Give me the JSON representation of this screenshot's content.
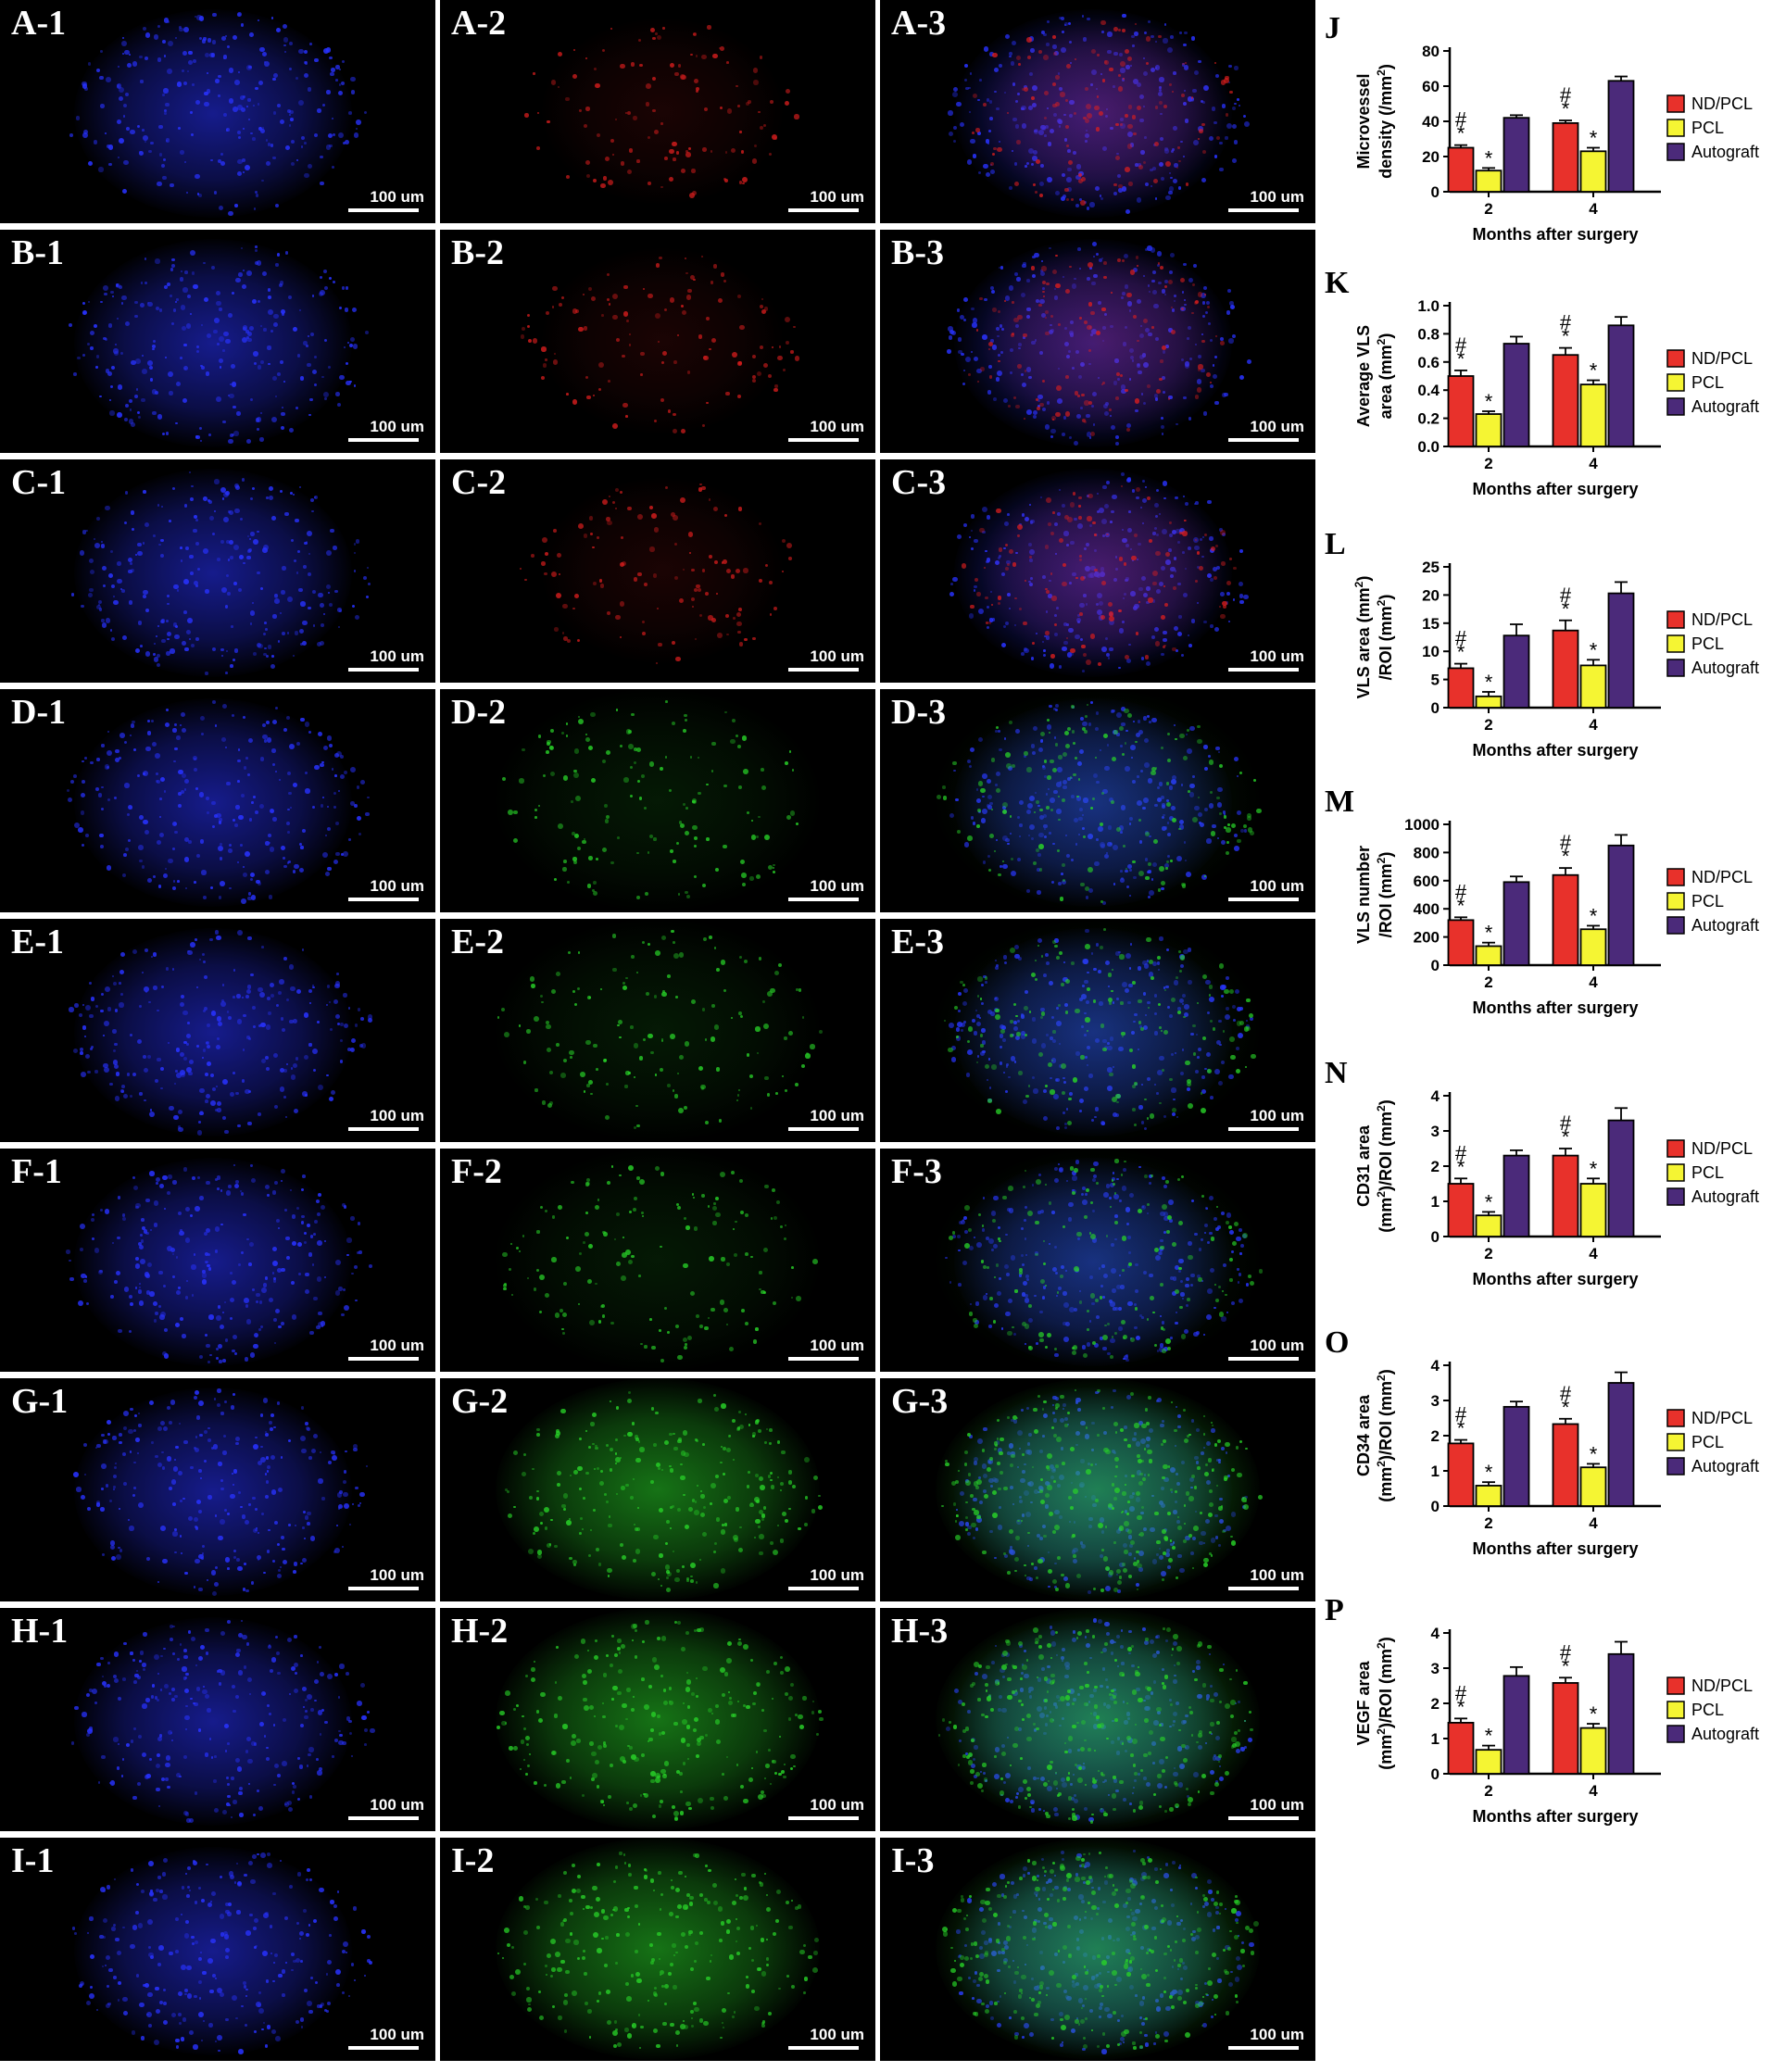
{
  "micrographs": {
    "scale_bar": "100 um",
    "rows": [
      {
        "row": "A",
        "stains": [
          "blue",
          "red",
          "merge-red"
        ],
        "labels": [
          "A-1",
          "A-2",
          "A-3"
        ]
      },
      {
        "row": "B",
        "stains": [
          "blue",
          "red",
          "merge-red"
        ],
        "labels": [
          "B-1",
          "B-2",
          "B-3"
        ]
      },
      {
        "row": "C",
        "stains": [
          "blue",
          "red",
          "merge-red"
        ],
        "labels": [
          "C-1",
          "C-2",
          "C-3"
        ]
      },
      {
        "row": "D",
        "stains": [
          "blue",
          "green",
          "merge-green"
        ],
        "labels": [
          "D-1",
          "D-2",
          "D-3"
        ]
      },
      {
        "row": "E",
        "stains": [
          "blue",
          "green",
          "merge-green"
        ],
        "labels": [
          "E-1",
          "E-2",
          "E-3"
        ]
      },
      {
        "row": "F",
        "stains": [
          "blue",
          "green",
          "merge-green"
        ],
        "labels": [
          "F-1",
          "F-2",
          "F-3"
        ]
      },
      {
        "row": "G",
        "stains": [
          "blue",
          "green-bright",
          "merge-green-bright"
        ],
        "labels": [
          "G-1",
          "G-2",
          "G-3"
        ]
      },
      {
        "row": "H",
        "stains": [
          "blue",
          "green-bright",
          "merge-green-bright"
        ],
        "labels": [
          "H-1",
          "H-2",
          "H-3"
        ]
      },
      {
        "row": "I",
        "stains": [
          "blue",
          "green-bright",
          "merge-green-bright"
        ],
        "labels": [
          "I-1",
          "I-2",
          "I-3"
        ]
      }
    ]
  },
  "colors": {
    "ND/PCL": "#e8312b",
    "PCL": "#f5f533",
    "Autograft": "#4b2a7a",
    "dapi": "#1a1aff",
    "red_stain": "#d01818",
    "green_stain": "#22c822"
  },
  "chart_data": [
    {
      "panel": "J",
      "type": "bar",
      "ylabel_lines": [
        "Microvessel",
        "density (/mm²)"
      ],
      "yticks": [
        0,
        20,
        40,
        60,
        80
      ],
      "ylim": [
        0,
        80
      ],
      "categories": [
        "2",
        "4"
      ],
      "xlabel": "Months after surgery",
      "series": [
        {
          "name": "ND/PCL",
          "values": [
            25,
            39
          ],
          "errors": [
            1.5,
            1.5
          ],
          "marks": [
            "#*",
            "#*"
          ]
        },
        {
          "name": "PCL",
          "values": [
            12,
            23
          ],
          "errors": [
            1.5,
            2
          ],
          "marks": [
            "*",
            "*"
          ]
        },
        {
          "name": "Autograft",
          "values": [
            42,
            63
          ],
          "errors": [
            1.5,
            2.5
          ],
          "marks": [
            "",
            ""
          ]
        }
      ]
    },
    {
      "panel": "K",
      "type": "bar",
      "ylabel_lines": [
        "Average VLS",
        "area (mm²)"
      ],
      "yticks": [
        0.0,
        0.2,
        0.4,
        0.6,
        0.8,
        1.0
      ],
      "ylim": [
        0,
        1.0
      ],
      "categories": [
        "2",
        "4"
      ],
      "xlabel": "Months after surgery",
      "series": [
        {
          "name": "ND/PCL",
          "values": [
            0.5,
            0.65
          ],
          "errors": [
            0.04,
            0.05
          ],
          "marks": [
            "#*",
            "#*"
          ]
        },
        {
          "name": "PCL",
          "values": [
            0.23,
            0.44
          ],
          "errors": [
            0.02,
            0.03
          ],
          "marks": [
            "*",
            "*"
          ]
        },
        {
          "name": "Autograft",
          "values": [
            0.73,
            0.86
          ],
          "errors": [
            0.05,
            0.06
          ],
          "marks": [
            "",
            ""
          ]
        }
      ]
    },
    {
      "panel": "L",
      "type": "bar",
      "ylabel_lines": [
        "VLS area (mm²)",
        "/ROI (mm²)"
      ],
      "yticks": [
        0,
        5,
        10,
        15,
        20,
        25
      ],
      "ylim": [
        0,
        25
      ],
      "categories": [
        "2",
        "4"
      ],
      "xlabel": "Months after surgery",
      "series": [
        {
          "name": "ND/PCL",
          "values": [
            7,
            13.7
          ],
          "errors": [
            0.8,
            1.8
          ],
          "marks": [
            "#*",
            "#*"
          ]
        },
        {
          "name": "PCL",
          "values": [
            2,
            7.5
          ],
          "errors": [
            0.8,
            1.0
          ],
          "marks": [
            "*",
            "*"
          ]
        },
        {
          "name": "Autograft",
          "values": [
            12.8,
            20.3
          ],
          "errors": [
            2,
            2
          ],
          "marks": [
            "",
            ""
          ]
        }
      ]
    },
    {
      "panel": "M",
      "type": "bar",
      "ylabel_lines": [
        "VLS number",
        "/ROI (mm²)"
      ],
      "yticks": [
        0,
        200,
        400,
        600,
        800,
        1000
      ],
      "ylim": [
        0,
        1000
      ],
      "categories": [
        "2",
        "4"
      ],
      "xlabel": "Months after surgery",
      "series": [
        {
          "name": "ND/PCL",
          "values": [
            320,
            640
          ],
          "errors": [
            20,
            50
          ],
          "marks": [
            "#*",
            "#*"
          ]
        },
        {
          "name": "PCL",
          "values": [
            135,
            255
          ],
          "errors": [
            25,
            25
          ],
          "marks": [
            "*",
            "*"
          ]
        },
        {
          "name": "Autograft",
          "values": [
            590,
            850
          ],
          "errors": [
            40,
            75
          ],
          "marks": [
            "",
            ""
          ]
        }
      ]
    },
    {
      "panel": "N",
      "type": "bar",
      "ylabel_lines": [
        "CD31 area",
        "(mm²)/ROI (mm²)"
      ],
      "yticks": [
        0,
        1,
        2,
        3,
        4
      ],
      "ylim": [
        0,
        4
      ],
      "categories": [
        "2",
        "4"
      ],
      "xlabel": "Months after surgery",
      "series": [
        {
          "name": "ND/PCL",
          "values": [
            1.5,
            2.3
          ],
          "errors": [
            0.15,
            0.2
          ],
          "marks": [
            "#*",
            "#*"
          ]
        },
        {
          "name": "PCL",
          "values": [
            0.6,
            1.5
          ],
          "errors": [
            0.1,
            0.15
          ],
          "marks": [
            "*",
            "*"
          ]
        },
        {
          "name": "Autograft",
          "values": [
            2.3,
            3.3
          ],
          "errors": [
            0.15,
            0.35
          ],
          "marks": [
            "",
            ""
          ]
        }
      ]
    },
    {
      "panel": "O",
      "type": "bar",
      "ylabel_lines": [
        "CD34 area",
        "(mm²)/ROI (mm²)"
      ],
      "yticks": [
        0,
        1,
        2,
        3,
        4
      ],
      "ylim": [
        0,
        4
      ],
      "categories": [
        "2",
        "4"
      ],
      "xlabel": "Months after surgery",
      "series": [
        {
          "name": "ND/PCL",
          "values": [
            1.78,
            2.33
          ],
          "errors": [
            0.1,
            0.15
          ],
          "marks": [
            "#*",
            "#*"
          ]
        },
        {
          "name": "PCL",
          "values": [
            0.58,
            1.1
          ],
          "errors": [
            0.1,
            0.1
          ],
          "marks": [
            "*",
            "*"
          ]
        },
        {
          "name": "Autograft",
          "values": [
            2.82,
            3.5
          ],
          "errors": [
            0.15,
            0.3
          ],
          "marks": [
            "",
            ""
          ]
        }
      ]
    },
    {
      "panel": "P",
      "type": "bar",
      "ylabel_lines": [
        "VEGF area",
        "(mm²)/ROI (mm²)"
      ],
      "yticks": [
        0,
        1,
        2,
        3,
        4
      ],
      "ylim": [
        0,
        4
      ],
      "categories": [
        "2",
        "4"
      ],
      "xlabel": "Months after surgery",
      "series": [
        {
          "name": "ND/PCL",
          "values": [
            1.45,
            2.58
          ],
          "errors": [
            0.12,
            0.15
          ],
          "marks": [
            "#*",
            "#*"
          ]
        },
        {
          "name": "PCL",
          "values": [
            0.68,
            1.3
          ],
          "errors": [
            0.12,
            0.12
          ],
          "marks": [
            "*",
            "*"
          ]
        },
        {
          "name": "Autograft",
          "values": [
            2.78,
            3.4
          ],
          "errors": [
            0.25,
            0.35
          ],
          "marks": [
            "",
            ""
          ]
        }
      ]
    }
  ]
}
